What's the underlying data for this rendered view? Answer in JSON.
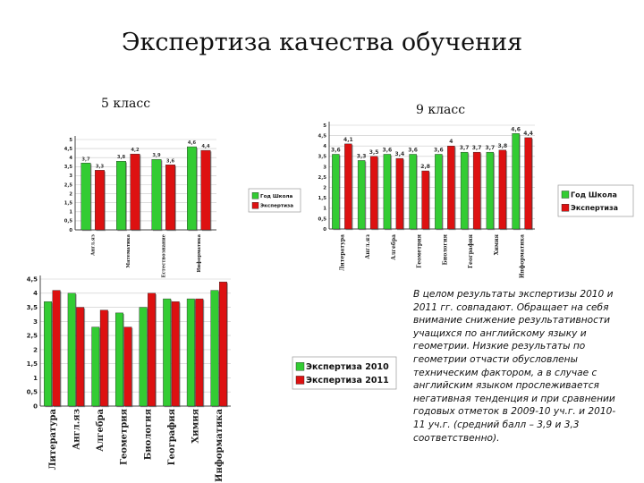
{
  "page": {
    "title": "Экспертиза качества обучения",
    "label_5": "5 класс",
    "label_9": "9 класс",
    "note": "В целом результаты экспертизы 2010 и 2011 гг. совпадают. Обращает на себя внимание снижение результативности учащихся по английскому языку и геометрии. Низкие результаты по геометрии отчасти обусловлены техническим фактором, а в случае с английским языком прослеживается негативная тенденция и при сравнении годовых отметок в 2009-10 уч.г. и 2010-11 уч.г. (средний балл – 3,9 и 3,3 соответственно)."
  },
  "colors": {
    "green": "#33cc33",
    "red": "#dd1111"
  },
  "chart_data": [
    {
      "id": "grade5",
      "type": "bar",
      "categories": [
        "Англ.яз",
        "Математика",
        "Естествознание",
        "Информатика"
      ],
      "series": [
        {
          "name": "Год Школа",
          "values": [
            3.7,
            3.8,
            3.9,
            4.6
          ]
        },
        {
          "name": "Экспертиза",
          "values": [
            3.3,
            4.2,
            3.6,
            4.4
          ]
        }
      ],
      "data_labels": [
        [
          "3,7",
          "3,8",
          "3,9",
          "4,6"
        ],
        [
          "3,3",
          "4,2",
          "3,6",
          "4,4"
        ]
      ],
      "ylim": [
        0,
        5
      ],
      "yticks": [
        "0",
        "0,5",
        "1",
        "1,5",
        "2",
        "2,5",
        "3",
        "3,5",
        "4",
        "4,5",
        "5"
      ],
      "legend": "right"
    },
    {
      "id": "grade9",
      "type": "bar",
      "categories": [
        "Литература",
        "Англ.яз",
        "Алгебра",
        "Геометрия",
        "Биология",
        "География",
        "Химия",
        "Информатика"
      ],
      "series": [
        {
          "name": "Год Школа",
          "values": [
            3.6,
            3.3,
            3.6,
            3.6,
            3.6,
            3.7,
            3.7,
            4.6
          ]
        },
        {
          "name": "Экспертиза",
          "values": [
            4.1,
            3.5,
            3.4,
            2.8,
            4.0,
            3.7,
            3.8,
            4.4
          ]
        }
      ],
      "data_labels": [
        [
          "3,6",
          "3,3",
          "3,6",
          "3,6",
          "3,6",
          "3,7",
          "3,7",
          "4,6"
        ],
        [
          "4,1",
          "3,5",
          "3,4",
          "2,8",
          "4",
          "3,7",
          "3,8",
          "4,4"
        ]
      ],
      "ylim": [
        0,
        5
      ],
      "yticks": [
        "0",
        "0,5",
        "1",
        "1,5",
        "2",
        "2,5",
        "3",
        "3,5",
        "4",
        "4,5",
        "5"
      ],
      "legend": "right"
    },
    {
      "id": "expertise",
      "type": "bar",
      "categories": [
        "Литература",
        "Англ.яз",
        "Алгебра",
        "Геометрия",
        "Биология",
        "География",
        "Химия",
        "Информатика"
      ],
      "series": [
        {
          "name": "Экспертиза 2010",
          "values": [
            3.7,
            4.0,
            2.8,
            3.3,
            3.5,
            3.8,
            3.8,
            4.1
          ]
        },
        {
          "name": "Экспертиза 2011",
          "values": [
            4.1,
            3.5,
            3.4,
            2.8,
            4.0,
            3.7,
            3.8,
            4.4
          ]
        }
      ],
      "ylim": [
        0,
        4.5
      ],
      "yticks": [
        "0",
        "0,5",
        "1",
        "1,5",
        "2",
        "2,5",
        "3",
        "3,5",
        "4",
        "4,5"
      ],
      "legend": "right"
    }
  ]
}
